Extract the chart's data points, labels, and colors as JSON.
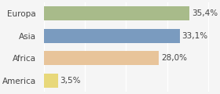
{
  "categories": [
    "America",
    "Africa",
    "Asia",
    "Europa"
  ],
  "values": [
    3.5,
    28.0,
    33.1,
    35.4
  ],
  "labels": [
    "3,5%",
    "28,0%",
    "33,1%",
    "35,4%"
  ],
  "bar_colors": [
    "#e8d87a",
    "#e8c49a",
    "#7a9bbf",
    "#a8bb8a"
  ],
  "background_color": "#f5f5f5",
  "xlim": [
    0,
    42
  ],
  "bar_height": 0.62,
  "fontsize": 7.5,
  "label_fontsize": 7.5
}
